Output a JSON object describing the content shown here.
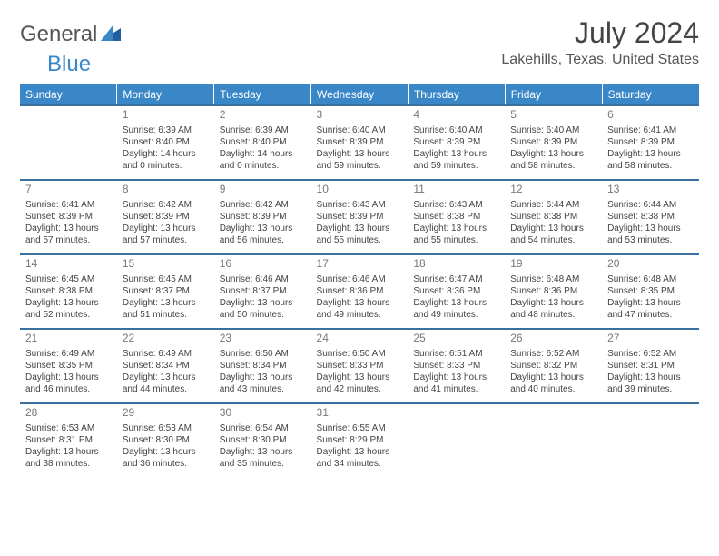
{
  "logo": {
    "text1": "General",
    "text2": "Blue",
    "color1": "#555555",
    "color2": "#3a87c8"
  },
  "title": "July 2024",
  "location": "Lakehills, Texas, United States",
  "header_bg": "#3a87c8",
  "row_border": "#3a6f9e",
  "dayHeaders": [
    "Sunday",
    "Monday",
    "Tuesday",
    "Wednesday",
    "Thursday",
    "Friday",
    "Saturday"
  ],
  "weeks": [
    [
      null,
      {
        "n": "1",
        "sr": "Sunrise: 6:39 AM",
        "ss": "Sunset: 8:40 PM",
        "dl": "Daylight: 14 hours and 0 minutes."
      },
      {
        "n": "2",
        "sr": "Sunrise: 6:39 AM",
        "ss": "Sunset: 8:40 PM",
        "dl": "Daylight: 14 hours and 0 minutes."
      },
      {
        "n": "3",
        "sr": "Sunrise: 6:40 AM",
        "ss": "Sunset: 8:39 PM",
        "dl": "Daylight: 13 hours and 59 minutes."
      },
      {
        "n": "4",
        "sr": "Sunrise: 6:40 AM",
        "ss": "Sunset: 8:39 PM",
        "dl": "Daylight: 13 hours and 59 minutes."
      },
      {
        "n": "5",
        "sr": "Sunrise: 6:40 AM",
        "ss": "Sunset: 8:39 PM",
        "dl": "Daylight: 13 hours and 58 minutes."
      },
      {
        "n": "6",
        "sr": "Sunrise: 6:41 AM",
        "ss": "Sunset: 8:39 PM",
        "dl": "Daylight: 13 hours and 58 minutes."
      }
    ],
    [
      {
        "n": "7",
        "sr": "Sunrise: 6:41 AM",
        "ss": "Sunset: 8:39 PM",
        "dl": "Daylight: 13 hours and 57 minutes."
      },
      {
        "n": "8",
        "sr": "Sunrise: 6:42 AM",
        "ss": "Sunset: 8:39 PM",
        "dl": "Daylight: 13 hours and 57 minutes."
      },
      {
        "n": "9",
        "sr": "Sunrise: 6:42 AM",
        "ss": "Sunset: 8:39 PM",
        "dl": "Daylight: 13 hours and 56 minutes."
      },
      {
        "n": "10",
        "sr": "Sunrise: 6:43 AM",
        "ss": "Sunset: 8:39 PM",
        "dl": "Daylight: 13 hours and 55 minutes."
      },
      {
        "n": "11",
        "sr": "Sunrise: 6:43 AM",
        "ss": "Sunset: 8:38 PM",
        "dl": "Daylight: 13 hours and 55 minutes."
      },
      {
        "n": "12",
        "sr": "Sunrise: 6:44 AM",
        "ss": "Sunset: 8:38 PM",
        "dl": "Daylight: 13 hours and 54 minutes."
      },
      {
        "n": "13",
        "sr": "Sunrise: 6:44 AM",
        "ss": "Sunset: 8:38 PM",
        "dl": "Daylight: 13 hours and 53 minutes."
      }
    ],
    [
      {
        "n": "14",
        "sr": "Sunrise: 6:45 AM",
        "ss": "Sunset: 8:38 PM",
        "dl": "Daylight: 13 hours and 52 minutes."
      },
      {
        "n": "15",
        "sr": "Sunrise: 6:45 AM",
        "ss": "Sunset: 8:37 PM",
        "dl": "Daylight: 13 hours and 51 minutes."
      },
      {
        "n": "16",
        "sr": "Sunrise: 6:46 AM",
        "ss": "Sunset: 8:37 PM",
        "dl": "Daylight: 13 hours and 50 minutes."
      },
      {
        "n": "17",
        "sr": "Sunrise: 6:46 AM",
        "ss": "Sunset: 8:36 PM",
        "dl": "Daylight: 13 hours and 49 minutes."
      },
      {
        "n": "18",
        "sr": "Sunrise: 6:47 AM",
        "ss": "Sunset: 8:36 PM",
        "dl": "Daylight: 13 hours and 49 minutes."
      },
      {
        "n": "19",
        "sr": "Sunrise: 6:48 AM",
        "ss": "Sunset: 8:36 PM",
        "dl": "Daylight: 13 hours and 48 minutes."
      },
      {
        "n": "20",
        "sr": "Sunrise: 6:48 AM",
        "ss": "Sunset: 8:35 PM",
        "dl": "Daylight: 13 hours and 47 minutes."
      }
    ],
    [
      {
        "n": "21",
        "sr": "Sunrise: 6:49 AM",
        "ss": "Sunset: 8:35 PM",
        "dl": "Daylight: 13 hours and 46 minutes."
      },
      {
        "n": "22",
        "sr": "Sunrise: 6:49 AM",
        "ss": "Sunset: 8:34 PM",
        "dl": "Daylight: 13 hours and 44 minutes."
      },
      {
        "n": "23",
        "sr": "Sunrise: 6:50 AM",
        "ss": "Sunset: 8:34 PM",
        "dl": "Daylight: 13 hours and 43 minutes."
      },
      {
        "n": "24",
        "sr": "Sunrise: 6:50 AM",
        "ss": "Sunset: 8:33 PM",
        "dl": "Daylight: 13 hours and 42 minutes."
      },
      {
        "n": "25",
        "sr": "Sunrise: 6:51 AM",
        "ss": "Sunset: 8:33 PM",
        "dl": "Daylight: 13 hours and 41 minutes."
      },
      {
        "n": "26",
        "sr": "Sunrise: 6:52 AM",
        "ss": "Sunset: 8:32 PM",
        "dl": "Daylight: 13 hours and 40 minutes."
      },
      {
        "n": "27",
        "sr": "Sunrise: 6:52 AM",
        "ss": "Sunset: 8:31 PM",
        "dl": "Daylight: 13 hours and 39 minutes."
      }
    ],
    [
      {
        "n": "28",
        "sr": "Sunrise: 6:53 AM",
        "ss": "Sunset: 8:31 PM",
        "dl": "Daylight: 13 hours and 38 minutes."
      },
      {
        "n": "29",
        "sr": "Sunrise: 6:53 AM",
        "ss": "Sunset: 8:30 PM",
        "dl": "Daylight: 13 hours and 36 minutes."
      },
      {
        "n": "30",
        "sr": "Sunrise: 6:54 AM",
        "ss": "Sunset: 8:30 PM",
        "dl": "Daylight: 13 hours and 35 minutes."
      },
      {
        "n": "31",
        "sr": "Sunrise: 6:55 AM",
        "ss": "Sunset: 8:29 PM",
        "dl": "Daylight: 13 hours and 34 minutes."
      },
      null,
      null,
      null
    ]
  ]
}
